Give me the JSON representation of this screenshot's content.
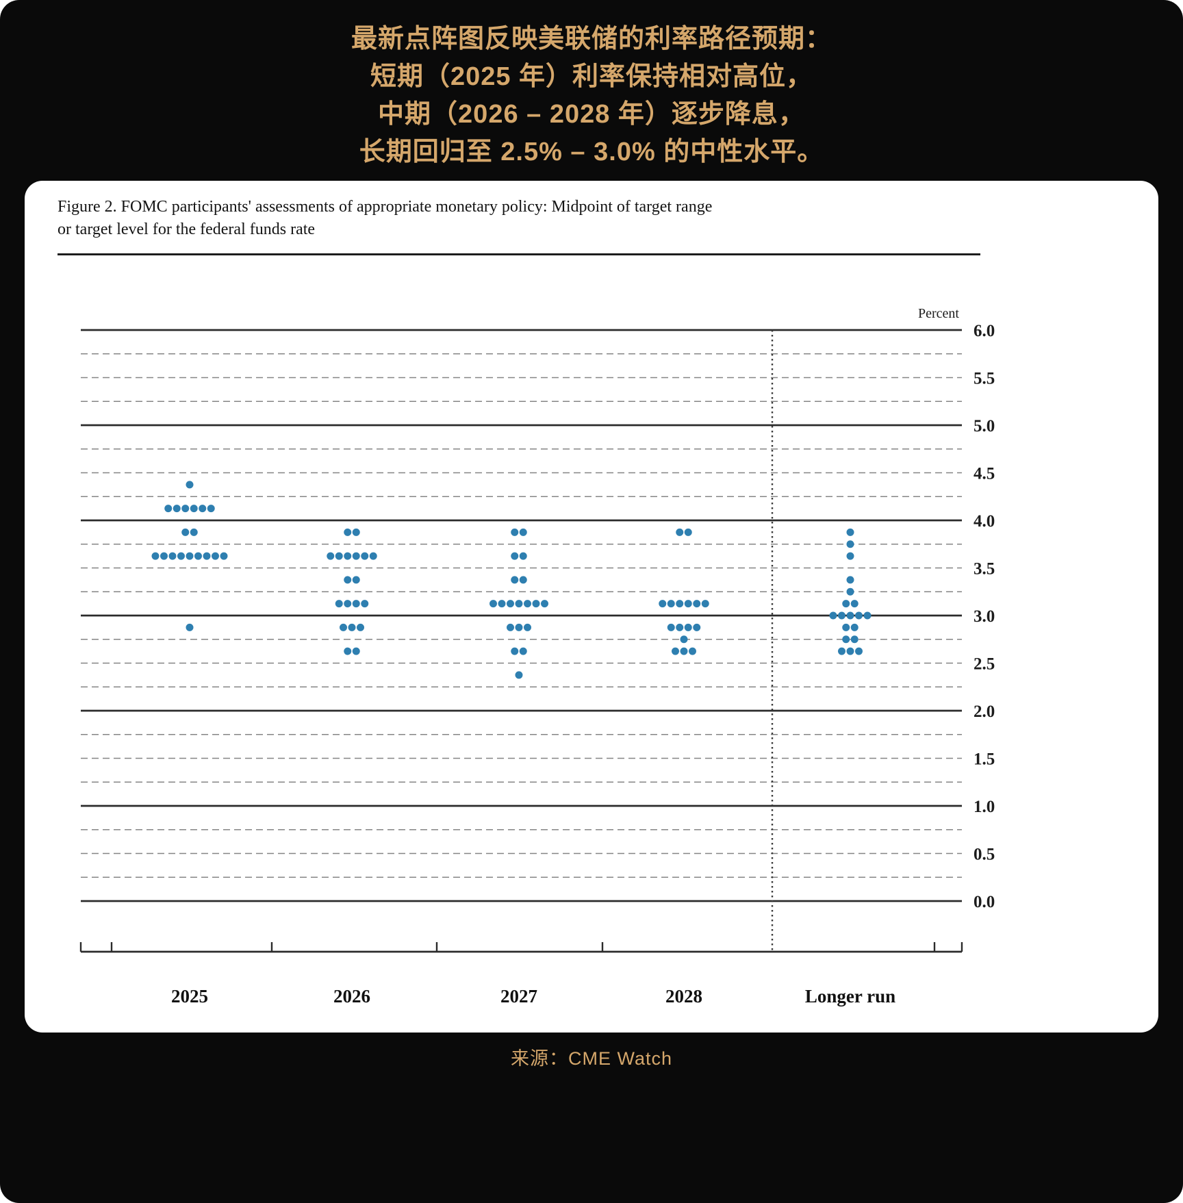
{
  "page": {
    "background_color": "#0a0a0a",
    "accent_gold": "#d5a76b",
    "card_color": "#ffffff"
  },
  "header": {
    "lines": [
      "最新点阵图反映美联储的利率路径预期：",
      "短期（2025 年）利率保持相对高位，",
      "中期（2026 – 2028 年）逐步降息，",
      "长期回归至 2.5% – 3.0% 的中性水平。"
    ]
  },
  "figure_card": {
    "title_line1": "Figure 2. FOMC participants' assessments of appropriate monetary policy: Midpoint of target range",
    "title_line2": "or target level for the federal funds rate"
  },
  "chart_data": {
    "type": "scatter",
    "title": "Figure 2. FOMC participants' assessments of appropriate monetary policy: Midpoint of target range or target level for the federal funds rate",
    "unit_label": "Percent",
    "ylim": [
      0.0,
      6.0
    ],
    "grid_interval": 0.25,
    "label_interval": 0.5,
    "yticks": [
      "6.0",
      "5.5",
      "5.0",
      "4.5",
      "4.0",
      "3.5",
      "3.0",
      "2.5",
      "2.0",
      "1.5",
      "1.0",
      "0.5",
      "0.0"
    ],
    "categories": [
      "2025",
      "2026",
      "2027",
      "2028",
      "Longer run"
    ],
    "dot_color": "#2e7fb0",
    "grid_on": true,
    "legend_position": "none",
    "series": [
      {
        "category": "2025",
        "dots": [
          {
            "rate": 4.375,
            "count": 1
          },
          {
            "rate": 4.125,
            "count": 6
          },
          {
            "rate": 3.875,
            "count": 2
          },
          {
            "rate": 3.625,
            "count": 9
          },
          {
            "rate": 2.875,
            "count": 1
          }
        ]
      },
      {
        "category": "2026",
        "dots": [
          {
            "rate": 3.875,
            "count": 2
          },
          {
            "rate": 3.625,
            "count": 6
          },
          {
            "rate": 3.375,
            "count": 2
          },
          {
            "rate": 3.125,
            "count": 4
          },
          {
            "rate": 2.875,
            "count": 3
          },
          {
            "rate": 2.625,
            "count": 2
          }
        ]
      },
      {
        "category": "2027",
        "dots": [
          {
            "rate": 3.875,
            "count": 2
          },
          {
            "rate": 3.625,
            "count": 2
          },
          {
            "rate": 3.375,
            "count": 2
          },
          {
            "rate": 3.125,
            "count": 7
          },
          {
            "rate": 2.875,
            "count": 3
          },
          {
            "rate": 2.625,
            "count": 2
          },
          {
            "rate": 2.375,
            "count": 1
          }
        ]
      },
      {
        "category": "2028",
        "dots": [
          {
            "rate": 3.875,
            "count": 2
          },
          {
            "rate": 3.125,
            "count": 6
          },
          {
            "rate": 2.875,
            "count": 4
          },
          {
            "rate": 2.75,
            "count": 1
          },
          {
            "rate": 2.625,
            "count": 3
          }
        ]
      },
      {
        "category": "Longer run",
        "dots": [
          {
            "rate": 3.875,
            "count": 1
          },
          {
            "rate": 3.75,
            "count": 1
          },
          {
            "rate": 3.625,
            "count": 1
          },
          {
            "rate": 3.375,
            "count": 1
          },
          {
            "rate": 3.25,
            "count": 1
          },
          {
            "rate": 3.125,
            "count": 2
          },
          {
            "rate": 3.0,
            "count": 5
          },
          {
            "rate": 2.875,
            "count": 2
          },
          {
            "rate": 2.75,
            "count": 2
          },
          {
            "rate": 2.625,
            "count": 3
          }
        ]
      }
    ]
  },
  "footer": {
    "source_label": "来源：CME Watch"
  }
}
